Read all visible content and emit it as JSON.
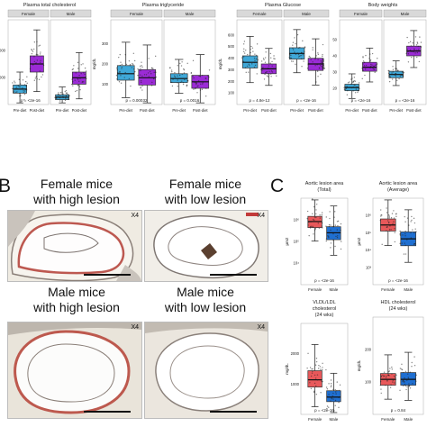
{
  "panelA": {
    "plots": [
      {
        "id": "chol",
        "title": "Plasma total cholesterol",
        "groups": [
          "Female",
          "Male"
        ],
        "ylabel": "",
        "yticks": [
          "1000",
          "2000"
        ],
        "xlabels": [
          "Pre-diet",
          "Post-diet",
          "Pre-diet",
          "Post-diet"
        ],
        "pvalue": "p = <2e-16",
        "boxes": [
          {
            "q1": 0.14,
            "med": 0.19,
            "q3": 0.24,
            "color": "#3fa8d8"
          },
          {
            "q1": 0.4,
            "med": 0.5,
            "q3": 0.6,
            "color": "#9b2bd6"
          },
          {
            "q1": 0.06,
            "med": 0.09,
            "q3": 0.12,
            "color": "#3fa8d8"
          },
          {
            "q1": 0.25,
            "med": 0.33,
            "q3": 0.4,
            "color": "#9b2bd6"
          }
        ]
      },
      {
        "id": "trig",
        "title": "Plasma triglyceride",
        "groups": [
          "Female",
          "Male"
        ],
        "ylabel": "mg/dL",
        "yticks": [
          "100",
          "200",
          "300"
        ],
        "xlabels": [
          "Pre-diet",
          "Post-diet",
          "Pre-diet",
          "Post-diet"
        ],
        "pvalue_left": "p = 0.00032",
        "pvalue_right": "p = 0.0016",
        "boxes": [
          {
            "q1": 0.3,
            "med": 0.38,
            "q3": 0.48,
            "color": "#3fa8d8"
          },
          {
            "q1": 0.24,
            "med": 0.33,
            "q3": 0.43,
            "color": "#9b2bd6"
          },
          {
            "q1": 0.27,
            "med": 0.32,
            "q3": 0.38,
            "color": "#3fa8d8"
          },
          {
            "q1": 0.2,
            "med": 0.28,
            "q3": 0.36,
            "color": "#9b2bd6"
          }
        ]
      },
      {
        "id": "gluc",
        "title": "Plasma Glucose",
        "groups": [
          "Female",
          "Male"
        ],
        "ylabel": "mg/dL",
        "yticks": [
          "100",
          "200",
          "300",
          "400",
          "500",
          "600"
        ],
        "xlabels": [
          "Pre-diet",
          "Post-diet",
          "Pre-diet",
          "Post-diet"
        ],
        "pvalue_left": "p = 4.8e-12",
        "pvalue_right": "p = <2e-16",
        "boxes": [
          {
            "q1": 0.45,
            "med": 0.52,
            "q3": 0.6,
            "color": "#3fa8d8"
          },
          {
            "q1": 0.38,
            "med": 0.44,
            "q3": 0.5,
            "color": "#9b2bd6"
          },
          {
            "q1": 0.56,
            "med": 0.63,
            "q3": 0.7,
            "color": "#3fa8d8"
          },
          {
            "q1": 0.42,
            "med": 0.5,
            "q3": 0.57,
            "color": "#9b2bd6"
          }
        ]
      },
      {
        "id": "bw",
        "title": "Body weights",
        "groups": [
          "Female",
          "Male"
        ],
        "ylabel": "grams",
        "yticks": [
          "20",
          "30",
          "40",
          "50"
        ],
        "xlabels": [
          "Pre-diet",
          "Post-diet",
          "Pre-diet",
          "Post-diet"
        ],
        "pvalue_left": "p = <2e-16",
        "pvalue_right": "p = <2e-16",
        "boxes": [
          {
            "q1": 0.17,
            "med": 0.21,
            "q3": 0.25,
            "color": "#3fa8d8"
          },
          {
            "q1": 0.41,
            "med": 0.46,
            "q3": 0.52,
            "color": "#9b2bd6"
          },
          {
            "q1": 0.33,
            "med": 0.37,
            "q3": 0.41,
            "color": "#3fa8d8"
          },
          {
            "q1": 0.6,
            "med": 0.66,
            "q3": 0.72,
            "color": "#9b2bd6"
          }
        ]
      }
    ]
  },
  "panelB": {
    "letter": "B",
    "images": [
      {
        "id": "f-high",
        "label_line1": "Female mice",
        "label_line2": "with high lesion",
        "mag": "X4"
      },
      {
        "id": "f-low",
        "label_line1": "Female mice",
        "label_line2": "with low lesion",
        "mag": "X4"
      },
      {
        "id": "m-high",
        "label_line1": "Male mice",
        "label_line2": "with high lesion",
        "mag": "X4"
      },
      {
        "id": "m-low",
        "label_line1": "Male mice",
        "label_line2": "with low lesion",
        "mag": "X4"
      }
    ]
  },
  "panelC": {
    "letter": "C",
    "plots": [
      {
        "id": "lesion-total",
        "title_line1": "Aortic lesion area",
        "title_line2": "(Total)",
        "ylabel": "µm2",
        "yticks": [
          "10⁴",
          "10⁵",
          "10⁶"
        ],
        "xlabels": [
          "Female",
          "Male"
        ],
        "pvalue": "p = <2e-16",
        "boxes": [
          {
            "q1": 0.66,
            "med": 0.73,
            "q3": 0.79,
            "color": "#e8585a"
          },
          {
            "q1": 0.52,
            "med": 0.6,
            "q3": 0.67,
            "color": "#1f6fd1"
          }
        ]
      },
      {
        "id": "lesion-avg",
        "title_line1": "Aortic lesion area",
        "title_line2": "(Average)",
        "ylabel": "µm2",
        "yticks": [
          "10³",
          "10⁴",
          "10⁵",
          "10⁶"
        ],
        "xlabels": [
          "Female",
          "Male"
        ],
        "pvalue": "p = <2e-16",
        "boxes": [
          {
            "q1": 0.62,
            "med": 0.69,
            "q3": 0.76,
            "color": "#e8585a"
          },
          {
            "q1": 0.45,
            "med": 0.53,
            "q3": 0.61,
            "color": "#1f6fd1"
          }
        ]
      },
      {
        "id": "vldl",
        "title_line1": "VLDL/LDL",
        "title_line2": "cholesterol",
        "title_line3": "(24 wks)",
        "ylabel": "mg/dL",
        "yticks": [
          "1000",
          "2000"
        ],
        "xlabels": [
          "Female",
          "Male"
        ],
        "pvalue": "p = <2e-16",
        "boxes": [
          {
            "q1": 0.3,
            "med": 0.38,
            "q3": 0.48,
            "color": "#e8585a"
          },
          {
            "q1": 0.14,
            "med": 0.19,
            "q3": 0.26,
            "color": "#1f6fd1"
          }
        ]
      },
      {
        "id": "hdl",
        "title_line1": "HDL cholesterol",
        "title_line2": "(24 wks)",
        "ylabel": "mg/dL",
        "yticks": [
          "100",
          "200"
        ],
        "xlabels": [
          "Female",
          "Male"
        ],
        "pvalue": "p = 0.84",
        "boxes": [
          {
            "q1": 0.3,
            "med": 0.36,
            "q3": 0.42,
            "color": "#e8585a"
          },
          {
            "q1": 0.3,
            "med": 0.36,
            "q3": 0.43,
            "color": "#1f6fd1"
          }
        ]
      }
    ]
  }
}
